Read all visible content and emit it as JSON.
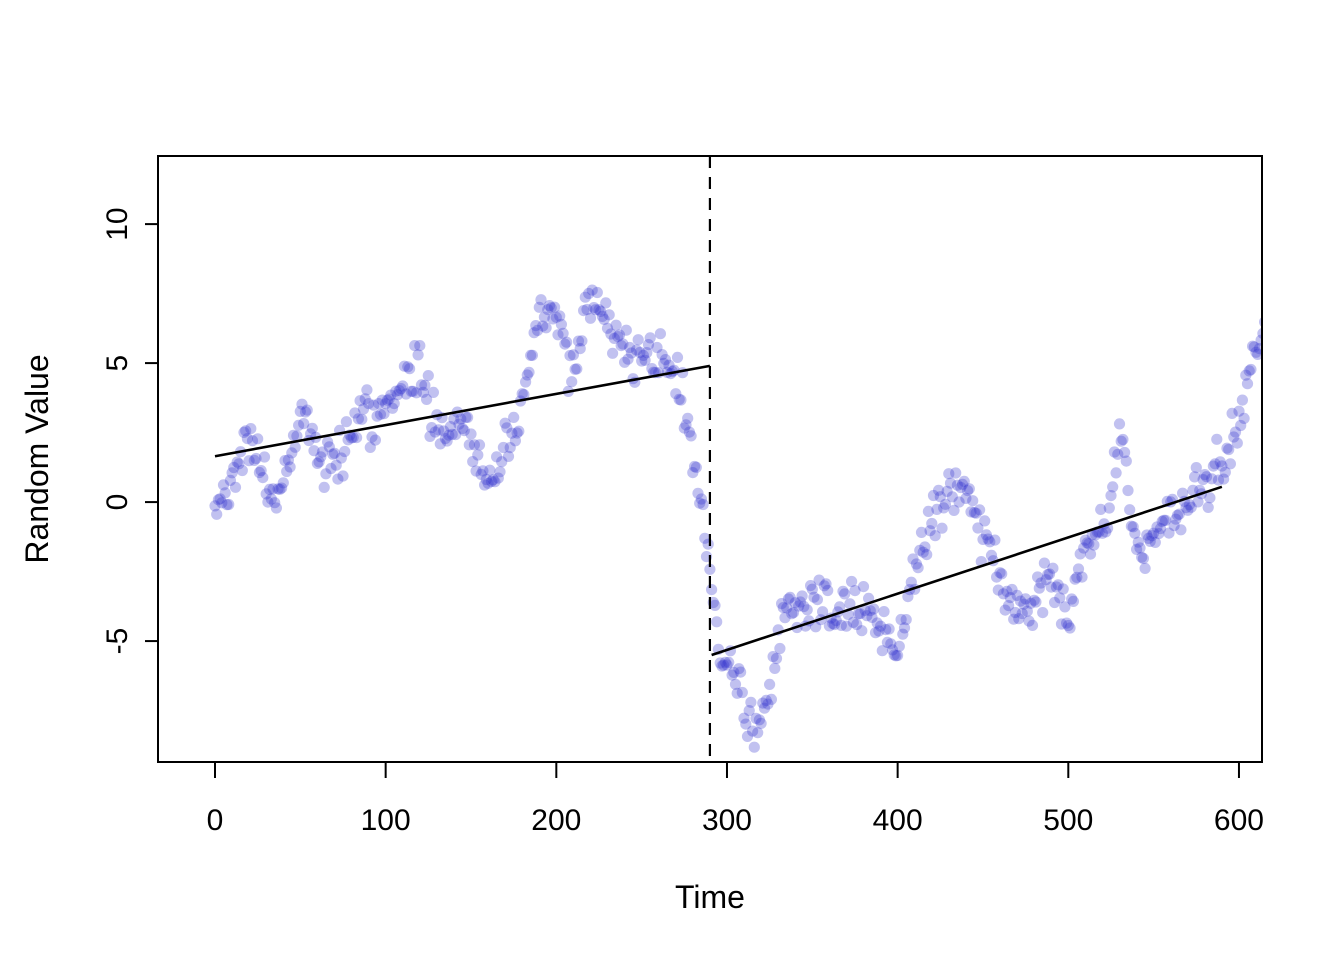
{
  "page": {
    "background": "#ffffff"
  },
  "chart_data": {
    "type": "scatter",
    "title": "",
    "xlabel": "Time",
    "ylabel": "Random Value",
    "x_ticks": [
      0,
      100,
      200,
      300,
      400,
      500,
      600
    ],
    "y_ticks": [
      -5,
      0,
      5,
      10
    ],
    "x_range": [
      -33.4,
      613.5
    ],
    "y_range": [
      -9.35,
      12.45
    ],
    "grid": false,
    "legend": "none",
    "point_style": {
      "color": "#3333cc",
      "opacity": 0.3,
      "radius": 5.6
    },
    "points": {
      "t_start": 0,
      "t_end": 615,
      "t_step": 1,
      "noise_sd": 0.45,
      "seed": 42,
      "waypoints": [
        [
          0,
          -0.5
        ],
        [
          4,
          0.2
        ],
        [
          8,
          0.8
        ],
        [
          12,
          1.3
        ],
        [
          16,
          1.9
        ],
        [
          20,
          2.4
        ],
        [
          24,
          1.6
        ],
        [
          28,
          0.8
        ],
        [
          32,
          0.2
        ],
        [
          36,
          0.1
        ],
        [
          40,
          0.8
        ],
        [
          44,
          1.8
        ],
        [
          48,
          2.6
        ],
        [
          51,
          3.3
        ],
        [
          54,
          3.6
        ],
        [
          57,
          2.2
        ],
        [
          60,
          1.4
        ],
        [
          64,
          1.1
        ],
        [
          68,
          1.3
        ],
        [
          72,
          1.5
        ],
        [
          76,
          2.0
        ],
        [
          80,
          2.7
        ],
        [
          84,
          3.3
        ],
        [
          88,
          3.6
        ],
        [
          92,
          2.8
        ],
        [
          96,
          3.0
        ],
        [
          100,
          3.1
        ],
        [
          104,
          3.3
        ],
        [
          108,
          3.8
        ],
        [
          112,
          4.3
        ],
        [
          116,
          4.8
        ],
        [
          119,
          5.0
        ],
        [
          123,
          4.2
        ],
        [
          127,
          3.3
        ],
        [
          131,
          2.6
        ],
        [
          135,
          2.4
        ],
        [
          139,
          2.6
        ],
        [
          143,
          3.0
        ],
        [
          147,
          2.8
        ],
        [
          151,
          2.1
        ],
        [
          155,
          1.4
        ],
        [
          159,
          0.9
        ],
        [
          163,
          0.8
        ],
        [
          167,
          1.1
        ],
        [
          171,
          1.7
        ],
        [
          175,
          2.4
        ],
        [
          179,
          3.2
        ],
        [
          183,
          4.4
        ],
        [
          187,
          5.8
        ],
        [
          190,
          6.6
        ],
        [
          193,
          7.1
        ],
        [
          196,
          7.0
        ],
        [
          199,
          6.7
        ],
        [
          202,
          6.3
        ],
        [
          205,
          5.3
        ],
        [
          208,
          4.4
        ],
        [
          211,
          4.8
        ],
        [
          214,
          5.8
        ],
        [
          218,
          6.9
        ],
        [
          221,
          7.7
        ],
        [
          224,
          7.5
        ],
        [
          227,
          6.8
        ],
        [
          230,
          6.3
        ],
        [
          234,
          5.9
        ],
        [
          238,
          5.6
        ],
        [
          242,
          5.3
        ],
        [
          246,
          5.2
        ],
        [
          250,
          5.4
        ],
        [
          254,
          5.5
        ],
        [
          258,
          5.2
        ],
        [
          262,
          5.0
        ],
        [
          266,
          4.8
        ],
        [
          270,
          4.6
        ],
        [
          274,
          3.6
        ],
        [
          278,
          2.4
        ],
        [
          281,
          1.4
        ],
        [
          284,
          0.2
        ],
        [
          287,
          -1.2
        ],
        [
          290,
          -2.8
        ],
        [
          293,
          -4.2
        ],
        [
          296,
          -5.2
        ],
        [
          300,
          -5.8
        ],
        [
          304,
          -6.3
        ],
        [
          308,
          -6.9
        ],
        [
          312,
          -7.6
        ],
        [
          316,
          -8.4
        ],
        [
          320,
          -8.2
        ],
        [
          323,
          -7.4
        ],
        [
          326,
          -6.6
        ],
        [
          329,
          -5.4
        ],
        [
          332,
          -4.2
        ],
        [
          336,
          -3.6
        ],
        [
          341,
          -3.7
        ],
        [
          346,
          -3.9
        ],
        [
          351,
          -3.8
        ],
        [
          356,
          -3.9
        ],
        [
          361,
          -4.0
        ],
        [
          366,
          -4.1
        ],
        [
          371,
          -3.9
        ],
        [
          376,
          -3.7
        ],
        [
          380,
          -3.7
        ],
        [
          384,
          -3.9
        ],
        [
          388,
          -4.1
        ],
        [
          392,
          -4.6
        ],
        [
          396,
          -5.2
        ],
        [
          400,
          -5.0
        ],
        [
          404,
          -4.2
        ],
        [
          408,
          -3.2
        ],
        [
          412,
          -2.2
        ],
        [
          416,
          -1.4
        ],
        [
          420,
          -0.7
        ],
        [
          424,
          -0.1
        ],
        [
          428,
          0.5
        ],
        [
          432,
          0.8
        ],
        [
          436,
          0.7
        ],
        [
          440,
          0.3
        ],
        [
          444,
          -0.2
        ],
        [
          448,
          -0.9
        ],
        [
          452,
          -1.5
        ],
        [
          456,
          -2.1
        ],
        [
          460,
          -2.7
        ],
        [
          464,
          -3.3
        ],
        [
          468,
          -3.8
        ],
        [
          472,
          -3.9
        ],
        [
          476,
          -3.7
        ],
        [
          480,
          -3.5
        ],
        [
          484,
          -3.0
        ],
        [
          488,
          -2.4
        ],
        [
          492,
          -3.0
        ],
        [
          496,
          -3.8
        ],
        [
          500,
          -4.2
        ],
        [
          504,
          -3.4
        ],
        [
          508,
          -2.2
        ],
        [
          512,
          -1.2
        ],
        [
          516,
          -0.8
        ],
        [
          520,
          -1.1
        ],
        [
          524,
          -0.4
        ],
        [
          527,
          1.0
        ],
        [
          530,
          2.3
        ],
        [
          533,
          1.8
        ],
        [
          536,
          0.2
        ],
        [
          539,
          -1.0
        ],
        [
          542,
          -1.7
        ],
        [
          545,
          -1.9
        ],
        [
          549,
          -1.5
        ],
        [
          553,
          -1.0
        ],
        [
          557,
          -0.6
        ],
        [
          561,
          -0.5
        ],
        [
          565,
          -0.5
        ],
        [
          569,
          -0.1
        ],
        [
          573,
          0.2
        ],
        [
          577,
          0.5
        ],
        [
          581,
          0.7
        ],
        [
          585,
          1.0
        ],
        [
          589,
          1.3
        ],
        [
          593,
          1.9
        ],
        [
          597,
          2.6
        ],
        [
          601,
          3.4
        ],
        [
          605,
          4.3
        ],
        [
          609,
          5.1
        ],
        [
          612,
          5.7
        ],
        [
          615,
          6.1
        ]
      ]
    },
    "trend_lines": [
      {
        "x1": 0,
        "y1": 1.65,
        "x2": 290,
        "y2": 4.9,
        "color": "#000000",
        "width": 2.6,
        "style": "solid"
      },
      {
        "x1": 291,
        "y1": -5.5,
        "x2": 590,
        "y2": 0.55,
        "color": "#000000",
        "width": 2.6,
        "style": "solid"
      }
    ],
    "vline": {
      "x": 290,
      "color": "#000000",
      "width": 2.2,
      "style": "dashed",
      "dash": "12 9"
    },
    "axis_color": "#000000",
    "tick_font_size": 30,
    "label_font_size": 32
  }
}
